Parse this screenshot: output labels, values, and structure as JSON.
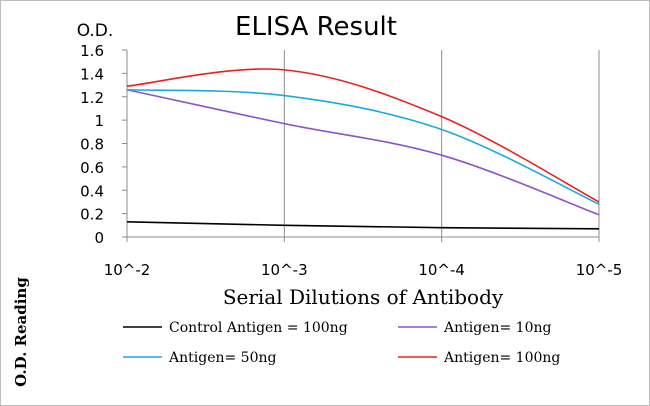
{
  "chart_data": {
    "type": "line",
    "title": "ELISA Result",
    "ylabel_top": "O.D.",
    "ylabel_side": "O.D. Reading",
    "xlabel": "Serial Dilutions of Antibody",
    "categories": [
      "10^-2",
      "10^-3",
      "10^-4",
      "10^-5"
    ],
    "ylim": [
      0,
      1.6
    ],
    "y_ticks": [
      "0",
      "0.2",
      "0.4",
      "0.6",
      "0.8",
      "1",
      "1.2",
      "1.4",
      "1.6"
    ],
    "grid": "vertical",
    "legend_position": "bottom",
    "series": [
      {
        "name": "Control Antigen = 100ng",
        "color": "#000000",
        "values": [
          0.13,
          0.1,
          0.08,
          0.07
        ]
      },
      {
        "name": "Antigen= 10ng",
        "color": "#8e52c9",
        "values": [
          1.26,
          0.97,
          0.7,
          0.19
        ]
      },
      {
        "name": "Antigen= 50ng",
        "color": "#1ba8e0",
        "values": [
          1.26,
          1.21,
          0.92,
          0.28
        ]
      },
      {
        "name": "Antigen= 100ng",
        "color": "#e8221b",
        "values": [
          1.29,
          1.43,
          1.03,
          0.3
        ]
      }
    ]
  }
}
